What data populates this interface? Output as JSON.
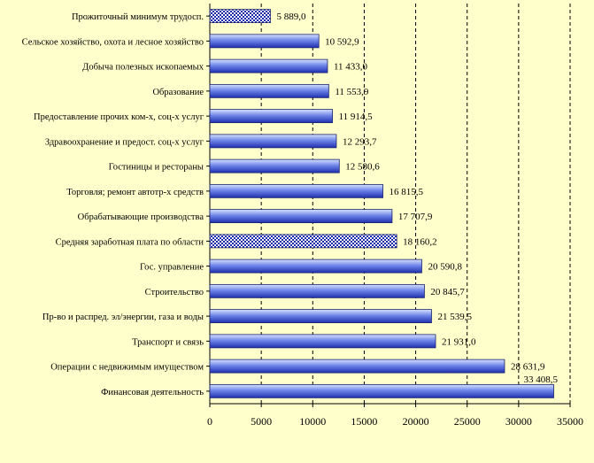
{
  "chart_data": {
    "type": "bar",
    "orientation": "horizontal",
    "categories": [
      "Прожиточный минимум трудосп.",
      "Сельское хозяйство, охота и лесное хозяйство",
      "Добыча полезных ископаемых",
      "Образование",
      "Предоставление прочих ком-х, соц-х услуг",
      "Здравоохранение и предост. соц-х услуг",
      "Гостиницы и рестораны",
      "Торговля; ремонт автотр-х средств",
      "Обрабатывающие производства",
      "Средняя заработная плата по области",
      "Гос. управление",
      "Строительство",
      "Пр-во и распред. эл/энергии, газа и воды",
      "Транспорт и связь",
      "Операции с недвижимым имуществом",
      "Финансовая деятельность"
    ],
    "values": [
      5889.0,
      10592.9,
      11433.0,
      11553.9,
      11914.5,
      12293.7,
      12580.6,
      16815.5,
      17707.9,
      18160.2,
      20590.8,
      20845.7,
      21539.5,
      21931.0,
      28631.9,
      33408.5
    ],
    "value_labels": [
      "5 889,0",
      "10 592,9",
      "11 433,0",
      "11 553,9",
      "11 914,5",
      "12 293,7",
      "12 580,6",
      "16 815,5",
      "17 707,9",
      "18 160,2",
      "20 590,8",
      "20 845,7",
      "21 539,5",
      "21 931,0",
      "28 631,9",
      "33 408,5"
    ],
    "highlighted": [
      0,
      9
    ],
    "xlim": [
      0,
      35000
    ],
    "xticks": [
      0,
      5000,
      10000,
      15000,
      20000,
      25000,
      30000,
      35000
    ],
    "grid": "vertical dashed",
    "legend": "none",
    "title": "",
    "xlabel": "",
    "ylabel": "",
    "colors": {
      "background": "#ffffcc",
      "bar_light": "#d7e3ff",
      "bar_mid": "#6f86e8",
      "bar_dark": "#1f2fae",
      "highlight_pattern_fg": "#1a2aa8",
      "highlight_pattern_bg": "#ffffff",
      "grid": "#000000"
    }
  }
}
